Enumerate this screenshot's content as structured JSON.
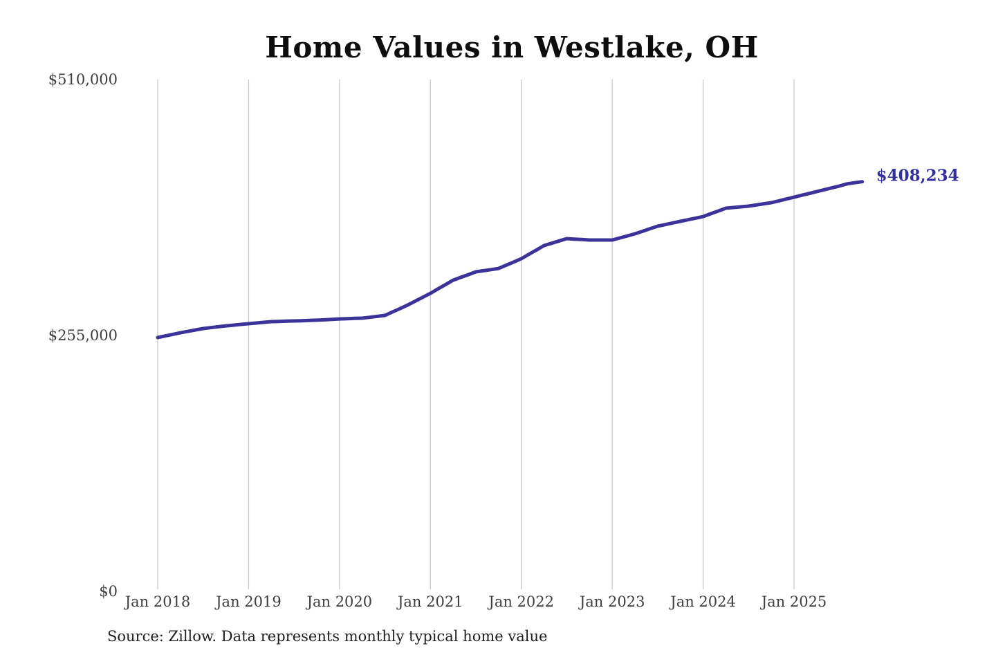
{
  "title": "Home Values in Westlake, OH",
  "end_label": "$408,234",
  "source_note": "Source: Zillow. Data represents monthly typical home value",
  "colors": {
    "line": "#3b3399",
    "end_label": "#31309c",
    "gridline": "#c8c8c8",
    "title": "#0e0e0e",
    "axis_label": "#3d3d3d",
    "source": "#1e1e1e",
    "background": "#ffffff"
  },
  "chart_data": {
    "type": "line",
    "title": "Home Values in Westlake, OH",
    "xlabel": "",
    "ylabel": "",
    "ylim": [
      0,
      510000
    ],
    "y_tick_labels": [
      "$0",
      "$255,000",
      "$510,000"
    ],
    "y_tick_values": [
      0,
      255000,
      510000
    ],
    "x_tick_labels": [
      "Jan 2018",
      "Jan 2019",
      "Jan 2020",
      "Jan 2021",
      "Jan 2022",
      "Jan 2023",
      "Jan 2024",
      "Jan 2025"
    ],
    "grid": "vertical-only",
    "legend": "none",
    "annotation": {
      "text": "$408,234",
      "at": "last-point"
    },
    "series": [
      {
        "name": "Monthly typical home value",
        "start_month": "2018-01",
        "end_month": "2025-10",
        "values": [
          252900,
          254500,
          256100,
          257700,
          259100,
          260500,
          261900,
          262800,
          263700,
          264600,
          265300,
          266000,
          266700,
          267400,
          268100,
          268800,
          269000,
          269300,
          269500,
          269700,
          270000,
          270200,
          270600,
          271000,
          271500,
          271700,
          272000,
          272200,
          273100,
          274000,
          275000,
          278400,
          281800,
          285300,
          289200,
          293100,
          297000,
          301400,
          305700,
          310100,
          312900,
          315600,
          318400,
          319500,
          320600,
          321800,
          325000,
          328200,
          331500,
          335900,
          340200,
          344600,
          346900,
          349200,
          351500,
          351000,
          350600,
          350100,
          350100,
          350100,
          350100,
          352200,
          354200,
          356300,
          358800,
          361400,
          363900,
          365500,
          367100,
          368700,
          370300,
          371900,
          373500,
          376300,
          379000,
          381800,
          382500,
          383200,
          383900,
          385000,
          386200,
          387300,
          389100,
          391000,
          392800,
          394700,
          396500,
          398400,
          400200,
          402100,
          403900,
          406100,
          407200,
          408234
        ],
        "last_value": 408234
      }
    ]
  }
}
